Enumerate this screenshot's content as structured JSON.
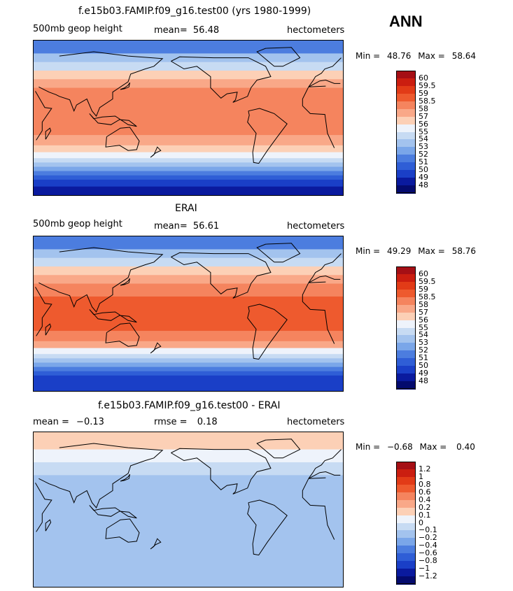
{
  "season": "ANN",
  "units_label": "hectometers",
  "panels": [
    {
      "title": "f.e15b03.FAMIP.f09_g16.test00 (yrs 1980-1999)",
      "left_label": "500mb geop height",
      "mean_label": "mean=",
      "mean_value": "56.48",
      "min_label": "Min =",
      "min_value": "48.76",
      "max_label": "Max =",
      "max_value": "58.64",
      "colorbar": {
        "levels": [
          "60",
          "59.5",
          "59",
          "58.5",
          "58",
          "57",
          "56",
          "55",
          "54",
          "53",
          "52",
          "51",
          "50",
          "49",
          "48"
        ],
        "colors": [
          "#a50f15",
          "#cb1e10",
          "#e23b17",
          "#ee5a2e",
          "#f5845e",
          "#f9a888",
          "#fcd0b6",
          "#eef3fb",
          "#c7dbf3",
          "#a3c3ee",
          "#7aa6e9",
          "#4c7ddf",
          "#2f5ed6",
          "#1a3fc7",
          "#0a1a9e",
          "#040b6e"
        ]
      }
    },
    {
      "title": "ERAI",
      "left_label": "500mb geop height",
      "mean_label": "mean=",
      "mean_value": "56.61",
      "min_label": "Min =",
      "min_value": "49.29",
      "max_label": "Max =",
      "max_value": "58.76",
      "colorbar": {
        "levels": [
          "60",
          "59.5",
          "59",
          "58.5",
          "58",
          "57",
          "56",
          "55",
          "54",
          "53",
          "52",
          "51",
          "50",
          "49",
          "48"
        ],
        "colors": [
          "#a50f15",
          "#cb1e10",
          "#e23b17",
          "#ee5a2e",
          "#f5845e",
          "#f9a888",
          "#fcd0b6",
          "#eef3fb",
          "#c7dbf3",
          "#a3c3ee",
          "#7aa6e9",
          "#4c7ddf",
          "#2f5ed6",
          "#1a3fc7",
          "#0a1a9e",
          "#040b6e"
        ]
      }
    },
    {
      "title": "f.e15b03.FAMIP.f09_g16.test00 - ERAI",
      "left_label": "mean =",
      "left_value": "−0.13",
      "mean_label": "rmse =",
      "mean_value": "0.18",
      "min_label": "Min =",
      "min_value": "−0.68",
      "max_label": "Max =",
      "max_value": "0.40",
      "colorbar": {
        "levels": [
          "1.2",
          "1",
          "0.8",
          "0.6",
          "0.4",
          "0.2",
          "0.1",
          "0",
          "−0.1",
          "−0.2",
          "−0.4",
          "−0.6",
          "−0.8",
          "−1",
          "−1.2"
        ],
        "colors": [
          "#a50f15",
          "#cb1e10",
          "#e23b17",
          "#ee5a2e",
          "#f5845e",
          "#f9a888",
          "#fcd0b6",
          "#eef3fb",
          "#c7dbf3",
          "#a3c3ee",
          "#7aa6e9",
          "#4c7ddf",
          "#2f5ed6",
          "#1a3fc7",
          "#0a1a9e",
          "#040b6e"
        ]
      }
    }
  ],
  "chart_data": [
    {
      "type": "heatmap",
      "title": "f.e15b03.FAMIP.f09_g16.test00 (yrs 1980-1999)",
      "variable": "500mb geop height",
      "units": "hectometers",
      "season": "ANN",
      "mean": 56.48,
      "min": 48.76,
      "max": 58.64,
      "contour_levels": [
        48,
        49,
        50,
        51,
        52,
        53,
        54,
        55,
        56,
        57,
        58,
        58.5,
        59,
        59.5,
        60
      ],
      "zonal_bands": [
        {
          "lat_from": 90,
          "lat_to": 75,
          "value": 51.5
        },
        {
          "lat_from": 75,
          "lat_to": 65,
          "value": 53.5
        },
        {
          "lat_from": 65,
          "lat_to": 55,
          "value": 54.5
        },
        {
          "lat_from": 55,
          "lat_to": 45,
          "value": 56.5
        },
        {
          "lat_from": 45,
          "lat_to": 35,
          "value": 57.5
        },
        {
          "lat_from": 35,
          "lat_to": 20,
          "value": 58.2
        },
        {
          "lat_from": 20,
          "lat_to": -20,
          "value": 58.3
        },
        {
          "lat_from": -20,
          "lat_to": -32,
          "value": 57.8
        },
        {
          "lat_from": -32,
          "lat_to": -40,
          "value": 56.5
        },
        {
          "lat_from": -40,
          "lat_to": -47,
          "value": 55.5
        },
        {
          "lat_from": -47,
          "lat_to": -52,
          "value": 54.5
        },
        {
          "lat_from": -52,
          "lat_to": -57,
          "value": 53.5
        },
        {
          "lat_from": -57,
          "lat_to": -62,
          "value": 52.5
        },
        {
          "lat_from": -62,
          "lat_to": -67,
          "value": 51.5
        },
        {
          "lat_from": -67,
          "lat_to": -72,
          "value": 50.5
        },
        {
          "lat_from": -72,
          "lat_to": -80,
          "value": 49.5
        },
        {
          "lat_from": -80,
          "lat_to": -90,
          "value": 48.8
        }
      ]
    },
    {
      "type": "heatmap",
      "title": "ERAI",
      "variable": "500mb geop height",
      "units": "hectometers",
      "season": "ANN",
      "mean": 56.61,
      "min": 49.29,
      "max": 58.76,
      "contour_levels": [
        48,
        49,
        50,
        51,
        52,
        53,
        54,
        55,
        56,
        57,
        58,
        58.5,
        59,
        59.5,
        60
      ],
      "zonal_bands": [
        {
          "lat_from": 90,
          "lat_to": 75,
          "value": 51.5
        },
        {
          "lat_from": 75,
          "lat_to": 65,
          "value": 53.5
        },
        {
          "lat_from": 65,
          "lat_to": 55,
          "value": 54.5
        },
        {
          "lat_from": 55,
          "lat_to": 45,
          "value": 56.5
        },
        {
          "lat_from": 45,
          "lat_to": 35,
          "value": 57.5
        },
        {
          "lat_from": 35,
          "lat_to": 20,
          "value": 58.3
        },
        {
          "lat_from": 20,
          "lat_to": -20,
          "value": 58.6
        },
        {
          "lat_from": -20,
          "lat_to": -32,
          "value": 58.2
        },
        {
          "lat_from": -32,
          "lat_to": -40,
          "value": 57.0
        },
        {
          "lat_from": -40,
          "lat_to": -47,
          "value": 55.5
        },
        {
          "lat_from": -47,
          "lat_to": -52,
          "value": 54.5
        },
        {
          "lat_from": -52,
          "lat_to": -57,
          "value": 53.5
        },
        {
          "lat_from": -57,
          "lat_to": -62,
          "value": 52.5
        },
        {
          "lat_from": -62,
          "lat_to": -67,
          "value": 51.5
        },
        {
          "lat_from": -67,
          "lat_to": -72,
          "value": 50.5
        },
        {
          "lat_from": -72,
          "lat_to": -80,
          "value": 49.8
        },
        {
          "lat_from": -80,
          "lat_to": -90,
          "value": 49.3
        }
      ]
    },
    {
      "type": "heatmap",
      "title": "f.e15b03.FAMIP.f09_g16.test00 - ERAI",
      "units": "hectometers",
      "season": "ANN",
      "mean": -0.13,
      "rmse": 0.18,
      "min": -0.68,
      "max": 0.4,
      "contour_levels": [
        -1.2,
        -1,
        -0.8,
        -0.6,
        -0.4,
        -0.2,
        -0.1,
        0,
        0.1,
        0.2,
        0.4,
        0.6,
        0.8,
        1,
        1.2
      ],
      "zonal_bands": [
        {
          "lat_from": 90,
          "lat_to": 70,
          "value": 0.15
        },
        {
          "lat_from": 70,
          "lat_to": 55,
          "value": 0.0
        },
        {
          "lat_from": 55,
          "lat_to": 40,
          "value": -0.05
        },
        {
          "lat_from": 40,
          "lat_to": -40,
          "value": -0.15
        },
        {
          "lat_from": -40,
          "lat_to": -60,
          "value": -0.12
        },
        {
          "lat_from": -60,
          "lat_to": -90,
          "value": -0.15
        }
      ]
    }
  ]
}
